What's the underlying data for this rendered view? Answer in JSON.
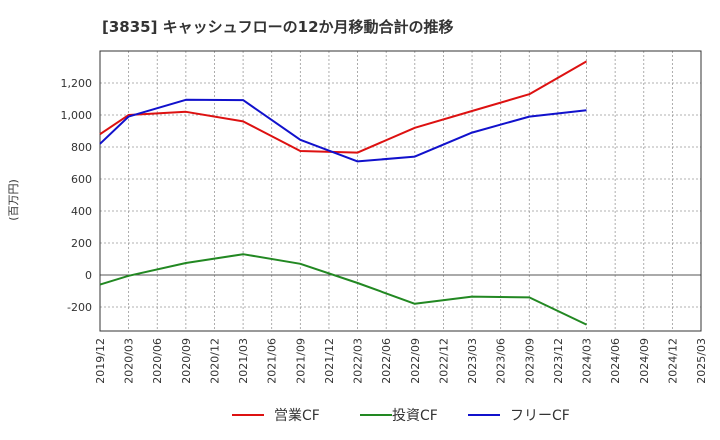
{
  "chart_data": {
    "type": "line",
    "title": "[3835]  キャッシュフローの12か月移動合計の推移",
    "ylabel": "(百万円)",
    "xlabel": "",
    "ylim": [
      -350,
      1400
    ],
    "yticks": [
      -200,
      0,
      200,
      400,
      600,
      800,
      1000,
      1200
    ],
    "ytick_labels": [
      "-200",
      "0",
      "200",
      "400",
      "600",
      "800",
      "1,000",
      "1,200"
    ],
    "x_categories": [
      "2019/12",
      "2020/03",
      "2020/06",
      "2020/09",
      "2020/12",
      "2021/03",
      "2021/06",
      "2021/09",
      "2021/12",
      "2022/03",
      "2022/06",
      "2022/09",
      "2022/12",
      "2023/03",
      "2023/06",
      "2023/09",
      "2023/12",
      "2024/03",
      "2024/06",
      "2024/09",
      "2024/12",
      "2025/03"
    ],
    "grid": true,
    "legend_position": "bottom",
    "series": [
      {
        "name": "営業CF",
        "color": "#dd1111",
        "points": [
          {
            "x": "2019/12",
            "y": 880
          },
          {
            "x": "2020/03",
            "y": 1000
          },
          {
            "x": "2020/09",
            "y": 1020
          },
          {
            "x": "2021/03",
            "y": 960
          },
          {
            "x": "2021/09",
            "y": 775
          },
          {
            "x": "2022/03",
            "y": 765
          },
          {
            "x": "2022/09",
            "y": 920
          },
          {
            "x": "2023/03",
            "y": 1025
          },
          {
            "x": "2023/09",
            "y": 1130
          },
          {
            "x": "2024/03",
            "y": 1335
          }
        ]
      },
      {
        "name": "投資CF",
        "color": "#228822",
        "points": [
          {
            "x": "2019/12",
            "y": -60
          },
          {
            "x": "2020/03",
            "y": -5
          },
          {
            "x": "2020/09",
            "y": 75
          },
          {
            "x": "2021/03",
            "y": 130
          },
          {
            "x": "2021/09",
            "y": 70
          },
          {
            "x": "2022/03",
            "y": -50
          },
          {
            "x": "2022/09",
            "y": -180
          },
          {
            "x": "2023/03",
            "y": -135
          },
          {
            "x": "2023/09",
            "y": -140
          },
          {
            "x": "2024/03",
            "y": -310
          }
        ]
      },
      {
        "name": "フリーCF",
        "color": "#1111cc",
        "points": [
          {
            "x": "2019/12",
            "y": 820
          },
          {
            "x": "2020/03",
            "y": 990
          },
          {
            "x": "2020/09",
            "y": 1095
          },
          {
            "x": "2021/03",
            "y": 1093
          },
          {
            "x": "2021/09",
            "y": 845
          },
          {
            "x": "2022/03",
            "y": 710
          },
          {
            "x": "2022/09",
            "y": 740
          },
          {
            "x": "2023/03",
            "y": 890
          },
          {
            "x": "2023/09",
            "y": 990
          },
          {
            "x": "2024/03",
            "y": 1030
          }
        ]
      }
    ]
  }
}
